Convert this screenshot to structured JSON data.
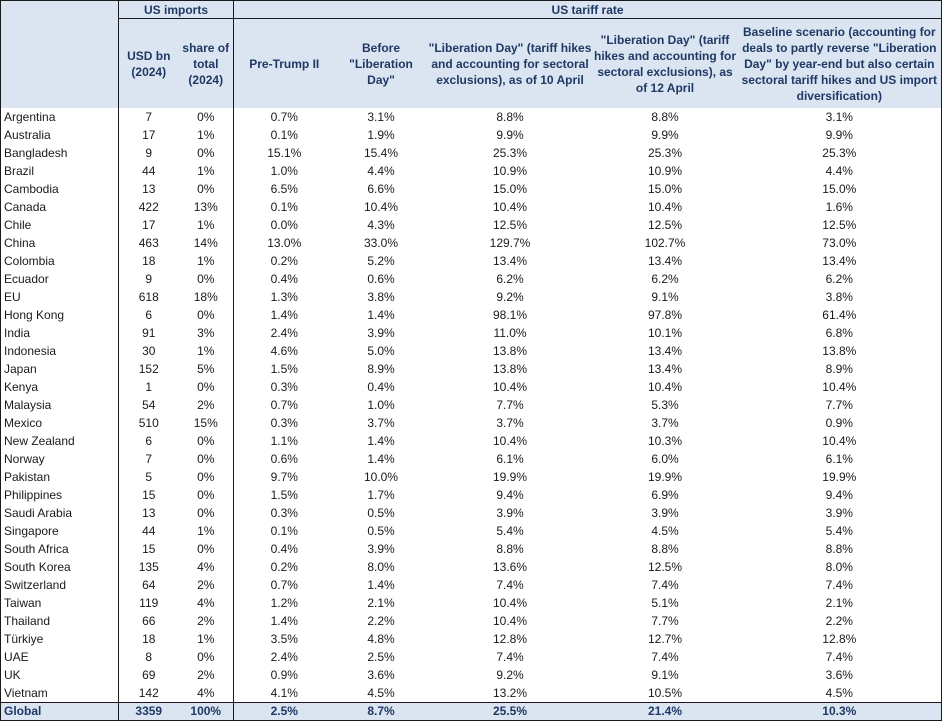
{
  "headers": {
    "group_imports": "US imports",
    "group_tariff": "US tariff rate",
    "columns": [
      "USD bn (2024)",
      "share of total (2024)",
      "Pre-Trump II",
      "Before \"Liberation Day\"",
      "\"Liberation Day\" (tariff hikes and accounting for sectoral exclusions), as of 10 April",
      "\"Liberation Day\" (tariff hikes and accounting for sectoral exclusions), as of 12 April",
      "Baseline scenario (accounting for deals to partly reverse \"Liberation Day\" by year-end but also certain sectoral tariff hikes and US import diversification)"
    ]
  },
  "rows": [
    [
      "Argentina",
      "7",
      "0%",
      "0.7%",
      "3.1%",
      "8.8%",
      "8.8%",
      "3.1%"
    ],
    [
      "Australia",
      "17",
      "1%",
      "0.1%",
      "1.9%",
      "9.9%",
      "9.9%",
      "9.9%"
    ],
    [
      "Bangladesh",
      "9",
      "0%",
      "15.1%",
      "15.4%",
      "25.3%",
      "25.3%",
      "25.3%"
    ],
    [
      "Brazil",
      "44",
      "1%",
      "1.0%",
      "4.4%",
      "10.9%",
      "10.9%",
      "4.4%"
    ],
    [
      "Cambodia",
      "13",
      "0%",
      "6.5%",
      "6.6%",
      "15.0%",
      "15.0%",
      "15.0%"
    ],
    [
      "Canada",
      "422",
      "13%",
      "0.1%",
      "10.4%",
      "10.4%",
      "10.4%",
      "1.6%"
    ],
    [
      "Chile",
      "17",
      "1%",
      "0.0%",
      "4.3%",
      "12.5%",
      "12.5%",
      "12.5%"
    ],
    [
      "China",
      "463",
      "14%",
      "13.0%",
      "33.0%",
      "129.7%",
      "102.7%",
      "73.0%"
    ],
    [
      "Colombia",
      "18",
      "1%",
      "0.2%",
      "5.2%",
      "13.4%",
      "13.4%",
      "13.4%"
    ],
    [
      "Ecuador",
      "9",
      "0%",
      "0.4%",
      "0.6%",
      "6.2%",
      "6.2%",
      "6.2%"
    ],
    [
      "EU",
      "618",
      "18%",
      "1.3%",
      "3.8%",
      "9.2%",
      "9.1%",
      "3.8%"
    ],
    [
      "Hong Kong",
      "6",
      "0%",
      "1.4%",
      "1.4%",
      "98.1%",
      "97.8%",
      "61.4%"
    ],
    [
      "India",
      "91",
      "3%",
      "2.4%",
      "3.9%",
      "11.0%",
      "10.1%",
      "6.8%"
    ],
    [
      "Indonesia",
      "30",
      "1%",
      "4.6%",
      "5.0%",
      "13.8%",
      "13.4%",
      "13.8%"
    ],
    [
      "Japan",
      "152",
      "5%",
      "1.5%",
      "8.9%",
      "13.8%",
      "13.4%",
      "8.9%"
    ],
    [
      "Kenya",
      "1",
      "0%",
      "0.3%",
      "0.4%",
      "10.4%",
      "10.4%",
      "10.4%"
    ],
    [
      "Malaysia",
      "54",
      "2%",
      "0.7%",
      "1.0%",
      "7.7%",
      "5.3%",
      "7.7%"
    ],
    [
      "Mexico",
      "510",
      "15%",
      "0.3%",
      "3.7%",
      "3.7%",
      "3.7%",
      "0.9%"
    ],
    [
      "New Zealand",
      "6",
      "0%",
      "1.1%",
      "1.4%",
      "10.4%",
      "10.3%",
      "10.4%"
    ],
    [
      "Norway",
      "7",
      "0%",
      "0.6%",
      "1.4%",
      "6.1%",
      "6.0%",
      "6.1%"
    ],
    [
      "Pakistan",
      "5",
      "0%",
      "9.7%",
      "10.0%",
      "19.9%",
      "19.9%",
      "19.9%"
    ],
    [
      "Philippines",
      "15",
      "0%",
      "1.5%",
      "1.7%",
      "9.4%",
      "6.9%",
      "9.4%"
    ],
    [
      "Saudi Arabia",
      "13",
      "0%",
      "0.3%",
      "0.5%",
      "3.9%",
      "3.9%",
      "3.9%"
    ],
    [
      "Singapore",
      "44",
      "1%",
      "0.1%",
      "0.5%",
      "5.4%",
      "4.5%",
      "5.4%"
    ],
    [
      "South Africa",
      "15",
      "0%",
      "0.4%",
      "3.9%",
      "8.8%",
      "8.8%",
      "8.8%"
    ],
    [
      "South Korea",
      "135",
      "4%",
      "0.2%",
      "8.0%",
      "13.6%",
      "12.5%",
      "8.0%"
    ],
    [
      "Switzerland",
      "64",
      "2%",
      "0.7%",
      "1.4%",
      "7.4%",
      "7.4%",
      "7.4%"
    ],
    [
      "Taiwan",
      "119",
      "4%",
      "1.2%",
      "2.1%",
      "10.4%",
      "5.1%",
      "2.1%"
    ],
    [
      "Thailand",
      "66",
      "2%",
      "1.4%",
      "2.2%",
      "10.4%",
      "7.7%",
      "2.2%"
    ],
    [
      "Türkiye",
      "18",
      "1%",
      "3.5%",
      "4.8%",
      "12.8%",
      "12.7%",
      "12.8%"
    ],
    [
      "UAE",
      "8",
      "0%",
      "2.4%",
      "2.5%",
      "7.4%",
      "7.4%",
      "7.4%"
    ],
    [
      "UK",
      "69",
      "2%",
      "0.9%",
      "3.6%",
      "9.2%",
      "9.1%",
      "3.6%"
    ],
    [
      "Vietnam",
      "142",
      "4%",
      "4.1%",
      "4.5%",
      "13.2%",
      "10.5%",
      "4.5%"
    ]
  ],
  "total": [
    "Global",
    "3359",
    "100%",
    "2.5%",
    "8.7%",
    "25.5%",
    "21.4%",
    "10.3%"
  ]
}
